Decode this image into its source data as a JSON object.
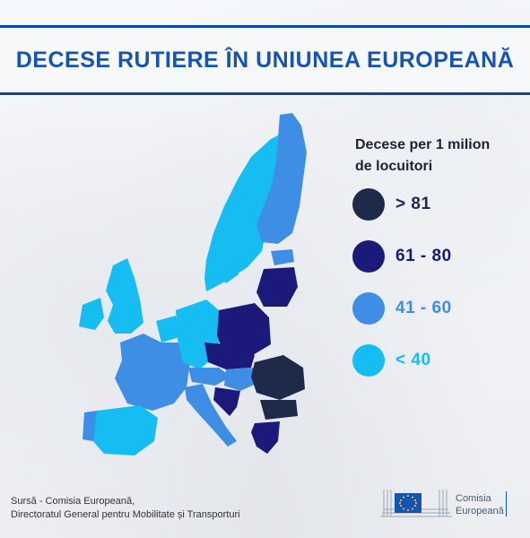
{
  "title": "DECESE RUTIERE ÎN UNIUNEA EUROPEANĂ",
  "legend": {
    "title_line1": "Decese per 1 milion",
    "title_line2": "de locuitori",
    "items": [
      {
        "label": "> 81",
        "color": "#1e2a4a"
      },
      {
        "label": "61 - 80",
        "color": "#1b1a7a"
      },
      {
        "label": "41 - 60",
        "color": "#3f8ee6"
      },
      {
        "label": "< 40",
        "color": "#16bdf2"
      }
    ]
  },
  "source": {
    "line1": "Sursă - Comisia Europeană,",
    "line2": "Directoratul General pentru Mobilitate și Transporturi"
  },
  "logo": {
    "line1": "Comisia",
    "line2": "Europeană"
  }
}
